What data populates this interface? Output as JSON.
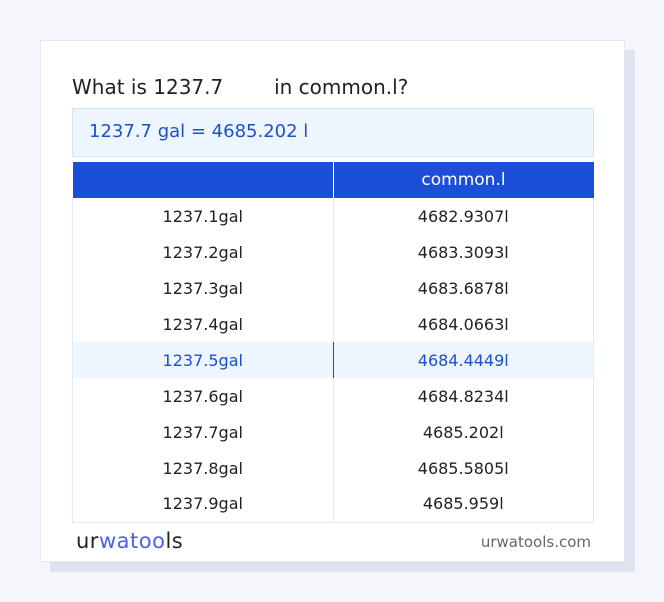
{
  "title": "What is 1237.7        in common.l?",
  "result": "1237.7 gal = 4685.202 l",
  "table": {
    "headers": [
      "",
      "common.l"
    ],
    "rows": [
      [
        "1237.1gal",
        "4682.9307l"
      ],
      [
        "1237.2gal",
        "4683.3093l"
      ],
      [
        "1237.3gal",
        "4683.6878l"
      ],
      [
        "1237.4gal",
        "4684.0663l"
      ],
      [
        "1237.5gal",
        "4684.4449l"
      ],
      [
        "1237.6gal",
        "4684.8234l"
      ],
      [
        "1237.7gal",
        "4685.202l"
      ],
      [
        "1237.8gal",
        "4685.5805l"
      ],
      [
        "1237.9gal",
        "4685.959l"
      ]
    ],
    "highlighted_row": 4
  },
  "logo": {
    "part1": "ur",
    "part2": "wat",
    "part3": "oo",
    "part4": "ls"
  },
  "site": "urwatools.com",
  "colors": {
    "accent": "#1c4fd8",
    "highlight_bg": "#edf5ff"
  }
}
